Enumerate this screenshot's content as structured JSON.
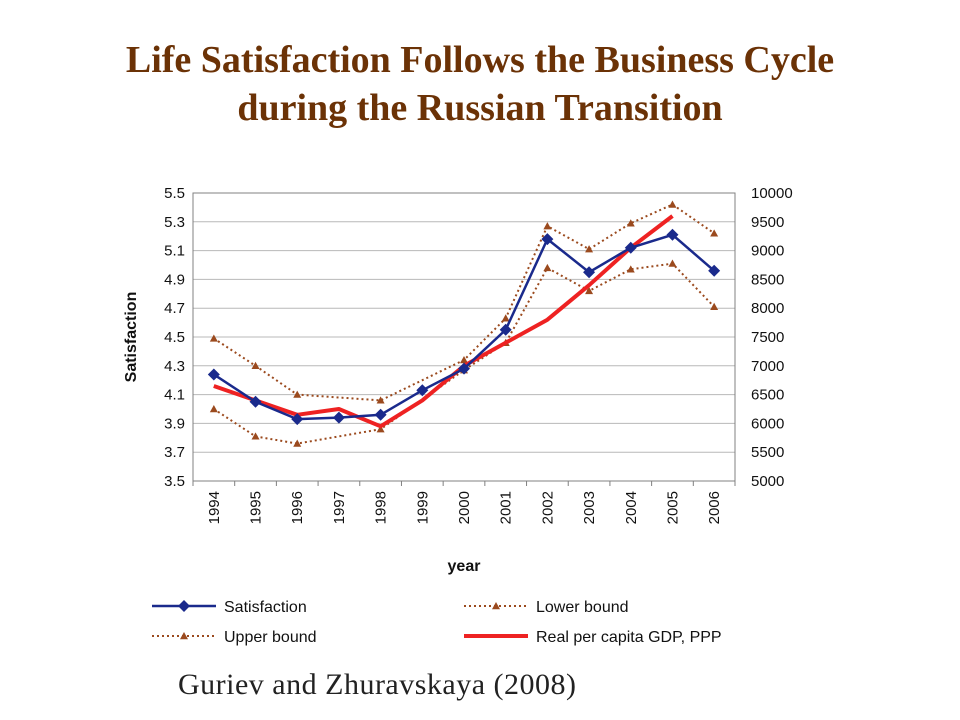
{
  "slide": {
    "title_line1": "Life Satisfaction Follows the Business Cycle",
    "title_line2": "during the Russian Transition",
    "citation": "Guriev and Zhuravskaya (2008)"
  },
  "colors": {
    "title": "#6b3206",
    "satisfaction": "#1a2a8c",
    "bounds": "#9b4a1e",
    "gdp": "#ee2222",
    "grid": "#b8b8b8"
  },
  "chart_data": {
    "type": "line",
    "xlabel": "year",
    "ylabel": "Satisfaction",
    "x": [
      "1994",
      "1995",
      "1996",
      "1997",
      "1998",
      "1999",
      "2000",
      "2001",
      "2002",
      "2003",
      "2004",
      "2005",
      "2006"
    ],
    "ylim": [
      3.5,
      5.5
    ],
    "yticks": [
      "5.5",
      "5.3",
      "5.1",
      "4.9",
      "4.7",
      "4.5",
      "4.3",
      "4.1",
      "3.9",
      "3.7",
      "3.5"
    ],
    "y2lim": [
      5000,
      10000
    ],
    "y2ticks": [
      "10000",
      "9500",
      "9000",
      "8500",
      "8000",
      "7500",
      "7000",
      "6500",
      "6000",
      "5500",
      "5000"
    ],
    "grid": true,
    "legend_position": "bottom",
    "series": [
      {
        "name": "Satisfaction",
        "axis": "left",
        "style": "solid-diamond",
        "values": [
          4.24,
          4.05,
          3.93,
          3.94,
          3.96,
          4.13,
          4.28,
          4.55,
          5.18,
          4.95,
          5.12,
          5.21,
          4.96
        ]
      },
      {
        "name": "Lower bound",
        "axis": "left",
        "style": "dotted-triangle",
        "values": [
          4.0,
          3.81,
          3.76,
          null,
          3.86,
          null,
          4.27,
          4.46,
          4.98,
          4.82,
          4.97,
          5.01,
          4.71
        ]
      },
      {
        "name": "Upper bound",
        "axis": "left",
        "style": "dotted-triangle",
        "values": [
          4.49,
          4.3,
          4.1,
          null,
          4.06,
          null,
          4.34,
          4.63,
          5.27,
          5.11,
          5.29,
          5.42,
          5.22
        ]
      },
      {
        "name": "Real per capita GDP, PPP",
        "axis": "right",
        "style": "solid-thick",
        "values": [
          6650,
          6400,
          6150,
          6250,
          5950,
          6400,
          7000,
          7400,
          7800,
          8400,
          9050,
          9600,
          null
        ]
      }
    ]
  }
}
